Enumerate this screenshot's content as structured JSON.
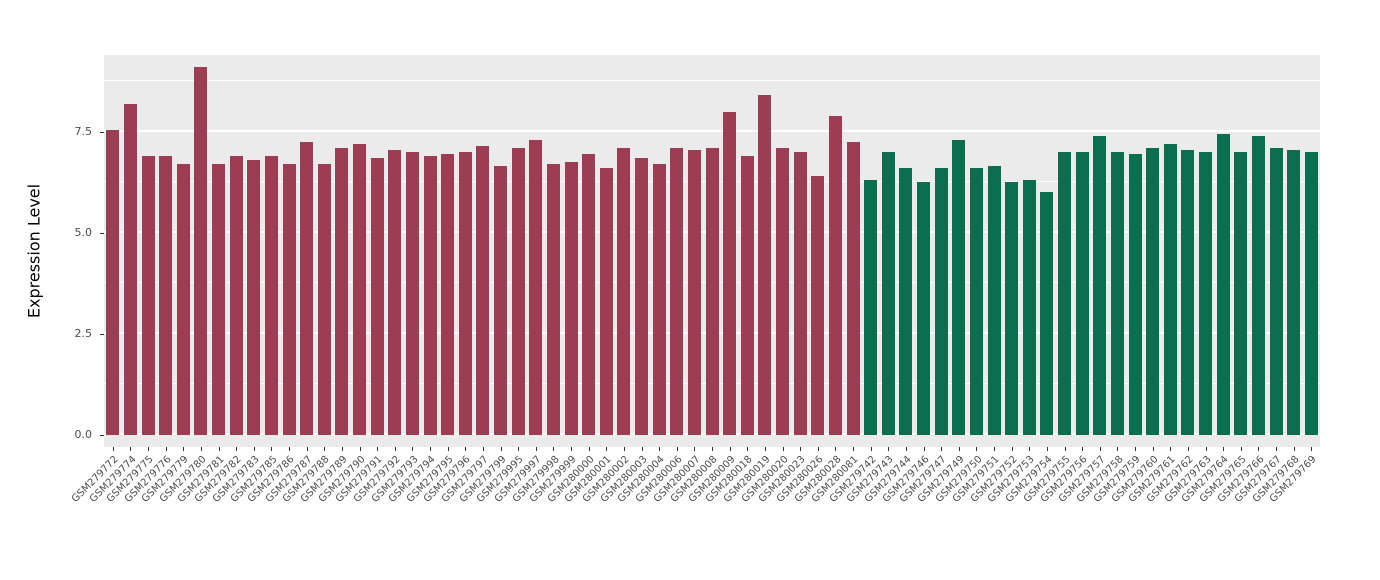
{
  "chart_data": {
    "type": "bar",
    "title": "",
    "xlabel": "",
    "ylabel": "Expression Level",
    "ylim": [
      0,
      9.4
    ],
    "y_ticks": [
      0.0,
      2.5,
      5.0,
      7.5
    ],
    "y_tick_labels": [
      "0.0",
      "2.5",
      "5.0",
      "7.5"
    ],
    "y_minor": [
      1.25,
      3.75,
      6.25,
      8.75
    ],
    "grid": true,
    "legend_position": "none",
    "panel_background": "#EBEBEB",
    "gridline_color": "#FFFFFF",
    "group_colors": {
      "groupA": "#9C3D54",
      "groupB": "#0B6E4F"
    },
    "categories": [
      "GSM279772",
      "GSM279774",
      "GSM279775",
      "GSM279776",
      "GSM279779",
      "GSM279780",
      "GSM279781",
      "GSM279782",
      "GSM279783",
      "GSM279785",
      "GSM279786",
      "GSM279787",
      "GSM279788",
      "GSM279789",
      "GSM279790",
      "GSM279791",
      "GSM279792",
      "GSM279793",
      "GSM279794",
      "GSM279795",
      "GSM279796",
      "GSM279797",
      "GSM279799",
      "GSM279995",
      "GSM279997",
      "GSM279998",
      "GSM279999",
      "GSM280000",
      "GSM280001",
      "GSM280002",
      "GSM280003",
      "GSM280004",
      "GSM280006",
      "GSM280007",
      "GSM280008",
      "GSM280009",
      "GSM280018",
      "GSM280019",
      "GSM280020",
      "GSM280023",
      "GSM280026",
      "GSM280028",
      "GSM280081",
      "GSM279742",
      "GSM279743",
      "GSM279744",
      "GSM279746",
      "GSM279747",
      "GSM279749",
      "GSM279750",
      "GSM279751",
      "GSM279752",
      "GSM279753",
      "GSM279754",
      "GSM279755",
      "GSM279756",
      "GSM279757",
      "GSM279758",
      "GSM279759",
      "GSM279760",
      "GSM279761",
      "GSM279762",
      "GSM279763",
      "GSM279764",
      "GSM279765",
      "GSM279766",
      "GSM279767",
      "GSM279768",
      "GSM279769"
    ],
    "values": [
      7.55,
      8.2,
      6.9,
      6.9,
      6.7,
      9.1,
      6.7,
      6.9,
      6.8,
      6.9,
      6.7,
      7.25,
      6.7,
      7.1,
      7.2,
      6.85,
      7.05,
      7.0,
      6.9,
      6.95,
      7.0,
      7.15,
      6.65,
      7.1,
      7.3,
      6.7,
      6.75,
      6.95,
      6.6,
      7.1,
      6.85,
      6.7,
      7.1,
      7.05,
      7.1,
      8.0,
      6.9,
      8.4,
      7.1,
      7.0,
      6.4,
      7.9,
      7.25,
      6.3,
      7.0,
      6.6,
      6.25,
      6.6,
      7.3,
      6.6,
      6.65,
      6.25,
      6.3,
      6.0,
      7.0,
      7.0,
      7.4,
      7.0,
      6.95,
      7.1,
      7.2,
      7.05,
      7.0,
      7.45,
      7.0,
      7.4,
      7.1,
      7.05,
      7.0
    ],
    "groups": [
      "groupA",
      "groupA",
      "groupA",
      "groupA",
      "groupA",
      "groupA",
      "groupA",
      "groupA",
      "groupA",
      "groupA",
      "groupA",
      "groupA",
      "groupA",
      "groupA",
      "groupA",
      "groupA",
      "groupA",
      "groupA",
      "groupA",
      "groupA",
      "groupA",
      "groupA",
      "groupA",
      "groupA",
      "groupA",
      "groupA",
      "groupA",
      "groupA",
      "groupA",
      "groupA",
      "groupA",
      "groupA",
      "groupA",
      "groupA",
      "groupA",
      "groupA",
      "groupA",
      "groupA",
      "groupA",
      "groupA",
      "groupA",
      "groupA",
      "groupA",
      "groupB",
      "groupB",
      "groupB",
      "groupB",
      "groupB",
      "groupB",
      "groupB",
      "groupB",
      "groupB",
      "groupB",
      "groupB",
      "groupB",
      "groupB",
      "groupB",
      "groupB",
      "groupB",
      "groupB",
      "groupB",
      "groupB",
      "groupB",
      "groupB",
      "groupB",
      "groupB",
      "groupB",
      "groupB",
      "groupB"
    ]
  }
}
